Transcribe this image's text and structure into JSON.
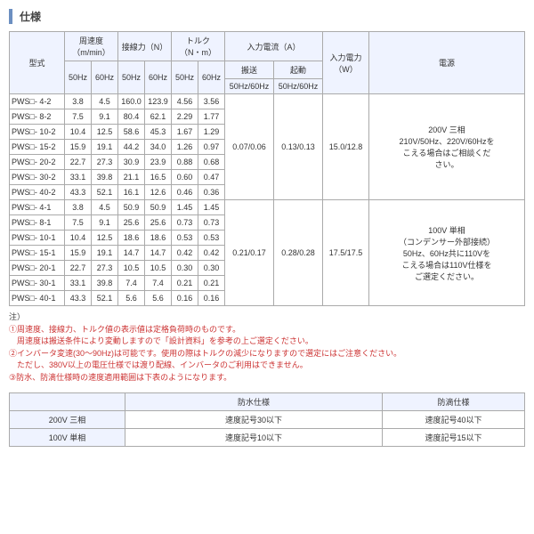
{
  "title": "仕様",
  "headers": {
    "model": "型式",
    "speed": "周速度\n（m/min）",
    "force": "接線力（N）",
    "torque": "トルク\n（N・m）",
    "current": "入力電流（A）",
    "power": "入力電力\n（W）",
    "source": "電源",
    "conv": "搬送",
    "start": "起動",
    "hz50": "50Hz",
    "hz60": "60Hz",
    "hz5060": "50Hz/60Hz"
  },
  "rows1": [
    {
      "m": "PWS□- 4-2",
      "s50": "3.8",
      "s60": "4.5",
      "f50": "160.0",
      "f60": "123.9",
      "t50": "4.56",
      "t60": "3.56"
    },
    {
      "m": "PWS□- 8-2",
      "s50": "7.5",
      "s60": "9.1",
      "f50": "80.4",
      "f60": "62.1",
      "t50": "2.29",
      "t60": "1.77"
    },
    {
      "m": "PWS□- 10-2",
      "s50": "10.4",
      "s60": "12.5",
      "f50": "58.6",
      "f60": "45.3",
      "t50": "1.67",
      "t60": "1.29"
    },
    {
      "m": "PWS□- 15-2",
      "s50": "15.9",
      "s60": "19.1",
      "f50": "44.2",
      "f60": "34.0",
      "t50": "1.26",
      "t60": "0.97"
    },
    {
      "m": "PWS□- 20-2",
      "s50": "22.7",
      "s60": "27.3",
      "f50": "30.9",
      "f60": "23.9",
      "t50": "0.88",
      "t60": "0.68"
    },
    {
      "m": "PWS□- 30-2",
      "s50": "33.1",
      "s60": "39.8",
      "f50": "21.1",
      "f60": "16.5",
      "t50": "0.60",
      "t60": "0.47"
    },
    {
      "m": "PWS□- 40-2",
      "s50": "43.3",
      "s60": "52.1",
      "f50": "16.1",
      "f60": "12.6",
      "t50": "0.46",
      "t60": "0.36"
    }
  ],
  "group1": {
    "conv": "0.07/0.06",
    "start": "0.13/0.13",
    "pw": "15.0/12.8",
    "src": "200V 三相\n210V/50Hz、220V/60Hzを\nこえる場合はご相談くだ\nさい。"
  },
  "rows2": [
    {
      "m": "PWS□- 4-1",
      "s50": "3.8",
      "s60": "4.5",
      "f50": "50.9",
      "f60": "50.9",
      "t50": "1.45",
      "t60": "1.45"
    },
    {
      "m": "PWS□- 8-1",
      "s50": "7.5",
      "s60": "9.1",
      "f50": "25.6",
      "f60": "25.6",
      "t50": "0.73",
      "t60": "0.73"
    },
    {
      "m": "PWS□- 10-1",
      "s50": "10.4",
      "s60": "12.5",
      "f50": "18.6",
      "f60": "18.6",
      "t50": "0.53",
      "t60": "0.53"
    },
    {
      "m": "PWS□- 15-1",
      "s50": "15.9",
      "s60": "19.1",
      "f50": "14.7",
      "f60": "14.7",
      "t50": "0.42",
      "t60": "0.42"
    },
    {
      "m": "PWS□- 20-1",
      "s50": "22.7",
      "s60": "27.3",
      "f50": "10.5",
      "f60": "10.5",
      "t50": "0.30",
      "t60": "0.30"
    },
    {
      "m": "PWS□- 30-1",
      "s50": "33.1",
      "s60": "39.8",
      "f50": "7.4",
      "f60": "7.4",
      "t50": "0.21",
      "t60": "0.21"
    },
    {
      "m": "PWS□- 40-1",
      "s50": "43.3",
      "s60": "52.1",
      "f50": "5.6",
      "f60": "5.6",
      "t50": "0.16",
      "t60": "0.16"
    }
  ],
  "group2": {
    "conv": "0.21/0.17",
    "start": "0.28/0.28",
    "pw": "17.5/17.5",
    "src": "100V 単相\n（コンデンサー外部接続）\n50Hz、60Hz共に110Vを\nこえる場合は110V仕様を\nご選定ください。"
  },
  "notes": {
    "label": "注）",
    "n1": "①周速度、接線力、トルク値の表示値は定格負荷時のものです。",
    "n1b": "　周速度は搬送条件により変動しますので「設計資料」を参考の上ご選定ください。",
    "n2": "②インバータ変速(30～90Hz)は可能です。使用の際はトルクの減少になりますので選定にはご注意ください。",
    "n2b": "　ただし、380V以上の電圧仕様では渡り配線、インバータのご利用はできません。",
    "n3": "③防水、防滴仕様時の速度適用範囲は下表のようになります。"
  },
  "table2": {
    "h1": "防水仕様",
    "h2": "防滴仕様",
    "r1l": "200V 三相",
    "r1a": "速度記号30以下",
    "r1b": "速度記号40以下",
    "r2l": "100V 単相",
    "r2a": "速度記号10以下",
    "r2b": "速度記号15以下"
  }
}
